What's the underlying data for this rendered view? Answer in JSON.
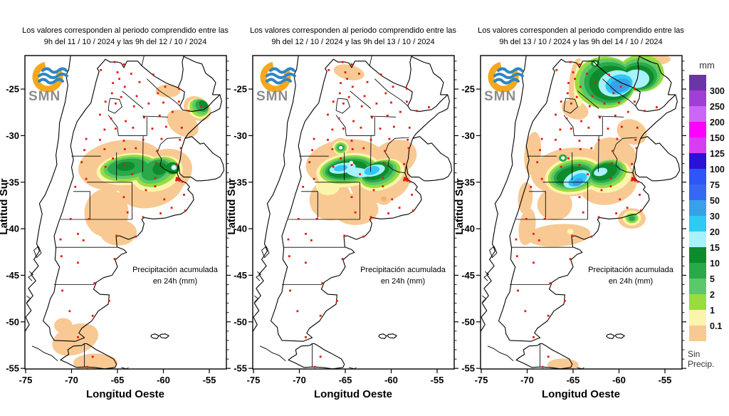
{
  "page": {
    "background": "#FFFFFF",
    "border_color": "#000000",
    "station_dot_color": "#E31A0F"
  },
  "branding": {
    "logo_text": "SMN",
    "logo_orange": "#F5A81C",
    "logo_blue": "#2E86C4",
    "logo_gray": "#8C8C8C"
  },
  "maps": [
    {
      "title_line1": "Los valores corresponden al periodo comprendido entre las",
      "title_line2": "9h del 11 / 10 / 2024  y las 9h del 12 / 10 / 2024"
    },
    {
      "title_line1": "Los valores corresponden al periodo comprendido entre las",
      "title_line2": "9h del 12 / 10 / 2024  y las 9h del 13 / 10 / 2024"
    },
    {
      "title_line1": "Los valores corresponden al periodo comprendido entre las",
      "title_line2": "9h del 13 / 10 / 2024  y las 9h del 14 / 10 / 2024"
    }
  ],
  "annotation": {
    "line1": "Precipitación acumulada",
    "line2": "en 24h (mm)"
  },
  "axes": {
    "x_label": "Longitud Oeste",
    "y_label": "Latitud Sur",
    "x_ticks": [
      "-75",
      "-70",
      "-65",
      "-60",
      "-55"
    ],
    "y_ticks": [
      "-25",
      "-30",
      "-35",
      "-40",
      "-45",
      "-50",
      "-55"
    ]
  },
  "legend": {
    "unit": "mm",
    "no_precip_line1": "Sin",
    "no_precip_line2": "Precip.",
    "bands": [
      {
        "color": "#6B35A8",
        "label": ""
      },
      {
        "color": "#A13FD4",
        "label": "300"
      },
      {
        "color": "#CB66F5",
        "label": "250"
      },
      {
        "color": "#FF00FF",
        "label": "200"
      },
      {
        "color": "#D63FF0",
        "label": "150"
      },
      {
        "color": "#2B10D8",
        "label": "125"
      },
      {
        "color": "#2E55F8",
        "label": "100"
      },
      {
        "color": "#3569F2",
        "label": "75"
      },
      {
        "color": "#38A1E8",
        "label": "50"
      },
      {
        "color": "#2FC9F5",
        "label": "30"
      },
      {
        "color": "#A8F2FD",
        "label": "20"
      },
      {
        "color": "#0E8B2C",
        "label": "15"
      },
      {
        "color": "#2AA84A",
        "label": "10"
      },
      {
        "color": "#5BC968",
        "label": "5"
      },
      {
        "color": "#98DC40",
        "label": "2"
      },
      {
        "color": "#FBF5AB",
        "label": "1"
      },
      {
        "color": "#F8C992",
        "label": "0.1"
      }
    ]
  }
}
